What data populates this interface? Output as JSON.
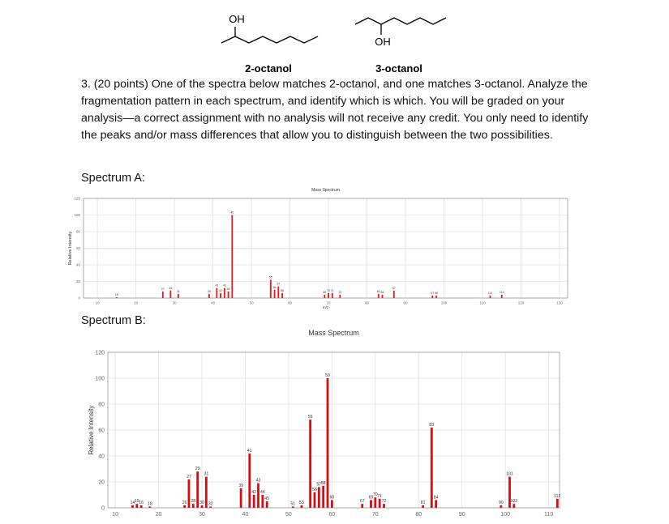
{
  "molecules": [
    {
      "substituent": "OH",
      "name": "2-octanol"
    },
    {
      "substituent": "OH",
      "name": "3-octanol"
    }
  ],
  "question": "3. (20 points) One of the spectra below matches 2-octanol, and one matches 3-octanol. Analyze the fragmentation pattern in each spectrum, and identify which is which. You will be graded on your analysis—a correct assignment with no analysis will not receive any credit. You only need to identify the peaks and/or mass differences that allow you to distinguish between the two possibilities.",
  "spectrum_labels": [
    "Spectrum A:",
    "Spectrum B:"
  ],
  "chart_data": [
    {
      "type": "bar",
      "title": "Mass Spectrum",
      "x_label": "m/z",
      "y_label": "Relative Intensity",
      "color": "#e8181b",
      "grid": true,
      "x": [
        15,
        27,
        29,
        31,
        39,
        41,
        42,
        43,
        44,
        45,
        55,
        56,
        57,
        58,
        69,
        70,
        71,
        73,
        83,
        84,
        87,
        97,
        98,
        112,
        115
      ],
      "values": [
        1,
        8,
        9,
        5,
        5,
        12,
        6,
        12,
        8,
        100,
        22,
        10,
        14,
        6,
        4,
        6,
        6,
        4,
        5,
        4,
        9,
        3,
        3,
        3,
        4
      ],
      "xlim": [
        6.4,
        132.1
      ],
      "ylim": [
        0,
        120
      ],
      "xticks": [
        10,
        20,
        30,
        40,
        50,
        60,
        70,
        80,
        90,
        100,
        110,
        120,
        130
      ],
      "yticks": [
        0,
        20,
        40,
        60,
        80,
        100,
        120
      ]
    },
    {
      "type": "bar",
      "title": "Mass Spectrum",
      "y_label": "Relative Intensity",
      "color": "#d40f14",
      "grid": true,
      "x": [
        14,
        15,
        16,
        18,
        26,
        27,
        28,
        29,
        30,
        31,
        32,
        39,
        41,
        42,
        43,
        44,
        45,
        51,
        53,
        55,
        56,
        57,
        58,
        59,
        60,
        67,
        69,
        70,
        71,
        72,
        81,
        83,
        84,
        99,
        101,
        102,
        112
      ],
      "values": [
        2,
        3,
        2,
        1,
        2,
        22,
        3,
        28,
        2,
        24,
        1,
        15,
        42,
        10,
        19,
        10,
        5,
        1,
        2,
        68,
        12,
        16,
        17,
        100,
        6,
        3,
        6,
        8,
        7,
        3,
        2,
        62,
        6,
        2,
        24,
        3,
        7
      ],
      "xlim": [
        8.3,
        112.5
      ],
      "ylim": [
        0,
        120
      ],
      "xticks": [
        10,
        20,
        30,
        40,
        50,
        60,
        70,
        80,
        90,
        100,
        110
      ],
      "yticks": [
        0,
        20,
        40,
        60,
        80,
        100,
        120
      ]
    }
  ]
}
